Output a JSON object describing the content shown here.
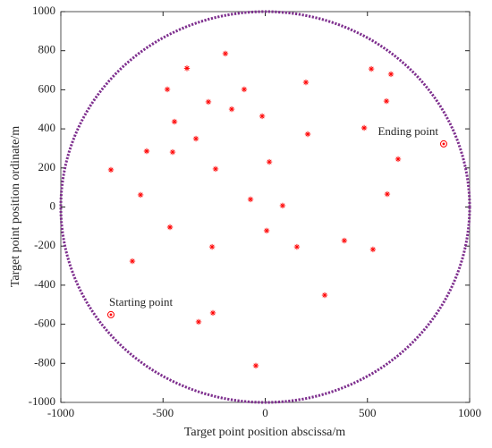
{
  "chart_data": {
    "type": "scatter",
    "xlabel": "Target point position abscissa/m",
    "ylabel": "Target point position ordinate/m",
    "xlim": [
      -1000,
      1000
    ],
    "ylim": [
      -1000,
      1000
    ],
    "xticks": [
      -1000,
      -500,
      0,
      500,
      1000
    ],
    "yticks": [
      -1000,
      -800,
      -600,
      -400,
      -200,
      0,
      200,
      400,
      600,
      800,
      1000
    ],
    "boundary": {
      "radius": 1000,
      "color": "#7e2f8e"
    },
    "series": [
      {
        "color": "#ff0000",
        "x": [
          -195,
          -383,
          -479,
          -103,
          -278,
          -164,
          -15,
          -444,
          199,
          519,
          615,
          593,
          -339,
          -580,
          -453,
          208,
          484,
          650,
          -755,
          -243,
          20,
          -610,
          -72,
          85,
          597,
          -466,
          7,
          -260,
          155,
          387,
          527,
          -650,
          291,
          -256,
          -326,
          -46
        ],
        "values": [
          785,
          710,
          602,
          602,
          538,
          501,
          465,
          437,
          638,
          707,
          680,
          542,
          350,
          286,
          281,
          373,
          405,
          245,
          190,
          195,
          231,
          62,
          39,
          7,
          66,
          -103,
          -121,
          -204,
          -204,
          -172,
          -217,
          -277,
          -451,
          -542,
          -588,
          -812
        ]
      }
    ],
    "annotations": [
      {
        "text": "Starting point",
        "x": -755,
        "y": -551,
        "color": "#ff0000"
      },
      {
        "text": "Ending point",
        "x": 873,
        "y": 323,
        "color": "#ff0000"
      }
    ]
  }
}
